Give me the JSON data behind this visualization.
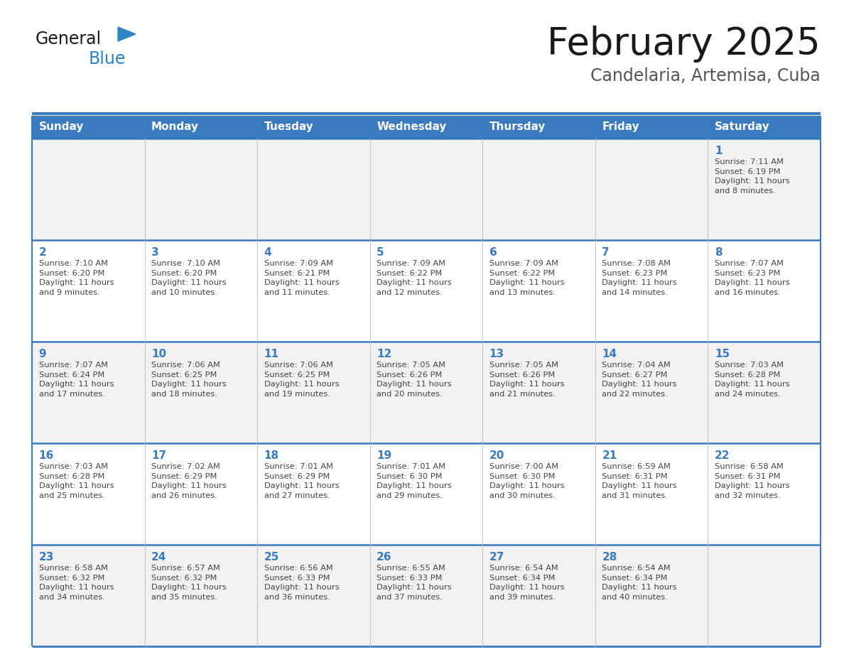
{
  "title": "February 2025",
  "subtitle": "Candelaria, Artemisa, Cuba",
  "header_bg_color": "#3a7abf",
  "header_text_color": "#FFFFFF",
  "cell_bg_color_odd": "#F2F2F2",
  "cell_bg_color_even": "#FFFFFF",
  "day_number_color": "#3a7abf",
  "cell_text_color": "#444444",
  "divider_color": "#3a7abf",
  "logo_general_color": "#1a1a1a",
  "logo_blue_color": "#2E86C1",
  "logo_triangle_color": "#2E86C1",
  "days_of_week": [
    "Sunday",
    "Monday",
    "Tuesday",
    "Wednesday",
    "Thursday",
    "Friday",
    "Saturday"
  ],
  "weeks": [
    [
      {
        "day": "",
        "info": ""
      },
      {
        "day": "",
        "info": ""
      },
      {
        "day": "",
        "info": ""
      },
      {
        "day": "",
        "info": ""
      },
      {
        "day": "",
        "info": ""
      },
      {
        "day": "",
        "info": ""
      },
      {
        "day": "1",
        "info": "Sunrise: 7:11 AM\nSunset: 6:19 PM\nDaylight: 11 hours\nand 8 minutes."
      }
    ],
    [
      {
        "day": "2",
        "info": "Sunrise: 7:10 AM\nSunset: 6:20 PM\nDaylight: 11 hours\nand 9 minutes."
      },
      {
        "day": "3",
        "info": "Sunrise: 7:10 AM\nSunset: 6:20 PM\nDaylight: 11 hours\nand 10 minutes."
      },
      {
        "day": "4",
        "info": "Sunrise: 7:09 AM\nSunset: 6:21 PM\nDaylight: 11 hours\nand 11 minutes."
      },
      {
        "day": "5",
        "info": "Sunrise: 7:09 AM\nSunset: 6:22 PM\nDaylight: 11 hours\nand 12 minutes."
      },
      {
        "day": "6",
        "info": "Sunrise: 7:09 AM\nSunset: 6:22 PM\nDaylight: 11 hours\nand 13 minutes."
      },
      {
        "day": "7",
        "info": "Sunrise: 7:08 AM\nSunset: 6:23 PM\nDaylight: 11 hours\nand 14 minutes."
      },
      {
        "day": "8",
        "info": "Sunrise: 7:07 AM\nSunset: 6:23 PM\nDaylight: 11 hours\nand 16 minutes."
      }
    ],
    [
      {
        "day": "9",
        "info": "Sunrise: 7:07 AM\nSunset: 6:24 PM\nDaylight: 11 hours\nand 17 minutes."
      },
      {
        "day": "10",
        "info": "Sunrise: 7:06 AM\nSunset: 6:25 PM\nDaylight: 11 hours\nand 18 minutes."
      },
      {
        "day": "11",
        "info": "Sunrise: 7:06 AM\nSunset: 6:25 PM\nDaylight: 11 hours\nand 19 minutes."
      },
      {
        "day": "12",
        "info": "Sunrise: 7:05 AM\nSunset: 6:26 PM\nDaylight: 11 hours\nand 20 minutes."
      },
      {
        "day": "13",
        "info": "Sunrise: 7:05 AM\nSunset: 6:26 PM\nDaylight: 11 hours\nand 21 minutes."
      },
      {
        "day": "14",
        "info": "Sunrise: 7:04 AM\nSunset: 6:27 PM\nDaylight: 11 hours\nand 22 minutes."
      },
      {
        "day": "15",
        "info": "Sunrise: 7:03 AM\nSunset: 6:28 PM\nDaylight: 11 hours\nand 24 minutes."
      }
    ],
    [
      {
        "day": "16",
        "info": "Sunrise: 7:03 AM\nSunset: 6:28 PM\nDaylight: 11 hours\nand 25 minutes."
      },
      {
        "day": "17",
        "info": "Sunrise: 7:02 AM\nSunset: 6:29 PM\nDaylight: 11 hours\nand 26 minutes."
      },
      {
        "day": "18",
        "info": "Sunrise: 7:01 AM\nSunset: 6:29 PM\nDaylight: 11 hours\nand 27 minutes."
      },
      {
        "day": "19",
        "info": "Sunrise: 7:01 AM\nSunset: 6:30 PM\nDaylight: 11 hours\nand 29 minutes."
      },
      {
        "day": "20",
        "info": "Sunrise: 7:00 AM\nSunset: 6:30 PM\nDaylight: 11 hours\nand 30 minutes."
      },
      {
        "day": "21",
        "info": "Sunrise: 6:59 AM\nSunset: 6:31 PM\nDaylight: 11 hours\nand 31 minutes."
      },
      {
        "day": "22",
        "info": "Sunrise: 6:58 AM\nSunset: 6:31 PM\nDaylight: 11 hours\nand 32 minutes."
      }
    ],
    [
      {
        "day": "23",
        "info": "Sunrise: 6:58 AM\nSunset: 6:32 PM\nDaylight: 11 hours\nand 34 minutes."
      },
      {
        "day": "24",
        "info": "Sunrise: 6:57 AM\nSunset: 6:32 PM\nDaylight: 11 hours\nand 35 minutes."
      },
      {
        "day": "25",
        "info": "Sunrise: 6:56 AM\nSunset: 6:33 PM\nDaylight: 11 hours\nand 36 minutes."
      },
      {
        "day": "26",
        "info": "Sunrise: 6:55 AM\nSunset: 6:33 PM\nDaylight: 11 hours\nand 37 minutes."
      },
      {
        "day": "27",
        "info": "Sunrise: 6:54 AM\nSunset: 6:34 PM\nDaylight: 11 hours\nand 39 minutes."
      },
      {
        "day": "28",
        "info": "Sunrise: 6:54 AM\nSunset: 6:34 PM\nDaylight: 11 hours\nand 40 minutes."
      },
      {
        "day": "",
        "info": ""
      }
    ]
  ],
  "title_fontsize": 38,
  "subtitle_fontsize": 17,
  "header_fontsize": 11,
  "day_number_fontsize": 11,
  "cell_text_fontsize": 8.2,
  "logo_general_fontsize": 17,
  "logo_blue_fontsize": 17
}
